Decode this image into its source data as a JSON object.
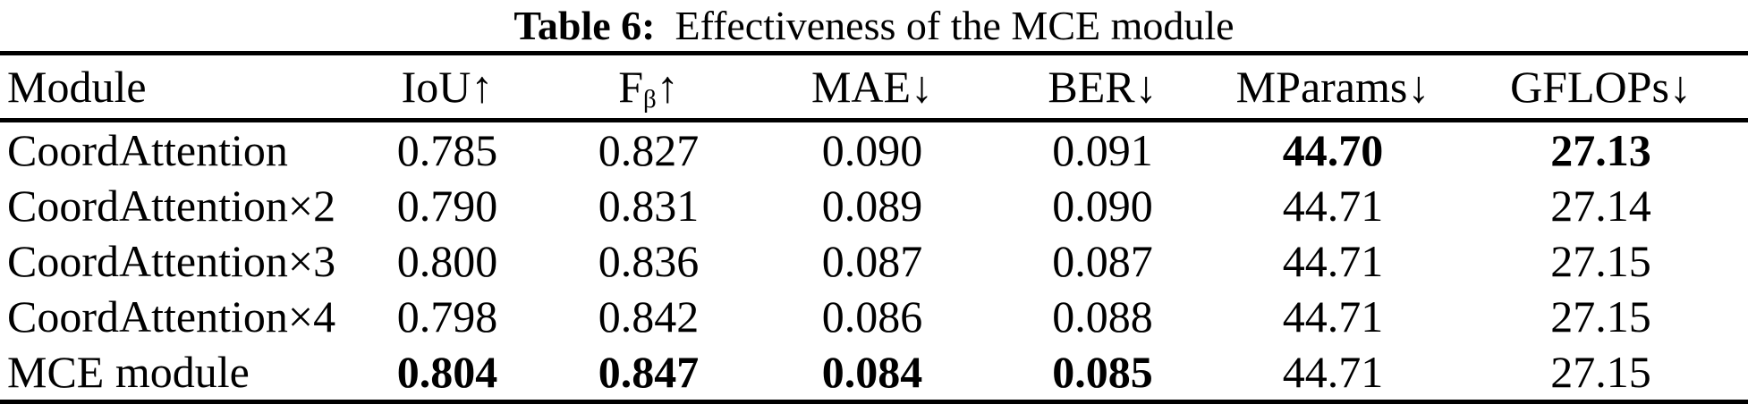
{
  "caption": {
    "label": "Table 6:",
    "text": "Effectiveness of the MCE module"
  },
  "table": {
    "headers": [
      {
        "label": "Module",
        "arrow": ""
      },
      {
        "label": "IoU",
        "arrow": "↑"
      },
      {
        "label": "F",
        "sub": "β",
        "arrow": "↑"
      },
      {
        "label": "MAE",
        "arrow": "↓"
      },
      {
        "label": "BER",
        "arrow": "↓"
      },
      {
        "label": "MParams",
        "arrow": "↓"
      },
      {
        "label": "GFLOPs",
        "arrow": "↓"
      }
    ],
    "rows": [
      {
        "module": "CoordAttention",
        "values": [
          "0.785",
          "0.827",
          "0.090",
          "0.091",
          "44.70",
          "27.13"
        ],
        "bold": [
          false,
          false,
          false,
          false,
          true,
          true
        ]
      },
      {
        "module": "CoordAttention×2",
        "values": [
          "0.790",
          "0.831",
          "0.089",
          "0.090",
          "44.71",
          "27.14"
        ],
        "bold": [
          false,
          false,
          false,
          false,
          false,
          false
        ]
      },
      {
        "module": "CoordAttention×3",
        "values": [
          "0.800",
          "0.836",
          "0.087",
          "0.087",
          "44.71",
          "27.15"
        ],
        "bold": [
          false,
          false,
          false,
          false,
          false,
          false
        ]
      },
      {
        "module": "CoordAttention×4",
        "values": [
          "0.798",
          "0.842",
          "0.086",
          "0.088",
          "44.71",
          "27.15"
        ],
        "bold": [
          false,
          false,
          false,
          false,
          false,
          false
        ]
      },
      {
        "module": "MCE module",
        "values": [
          "0.804",
          "0.847",
          "0.084",
          "0.085",
          "44.71",
          "27.15"
        ],
        "bold": [
          true,
          true,
          true,
          true,
          false,
          false
        ]
      }
    ]
  },
  "colors": {
    "text": "#000000",
    "background": "#ffffff",
    "rule": "#000000"
  }
}
